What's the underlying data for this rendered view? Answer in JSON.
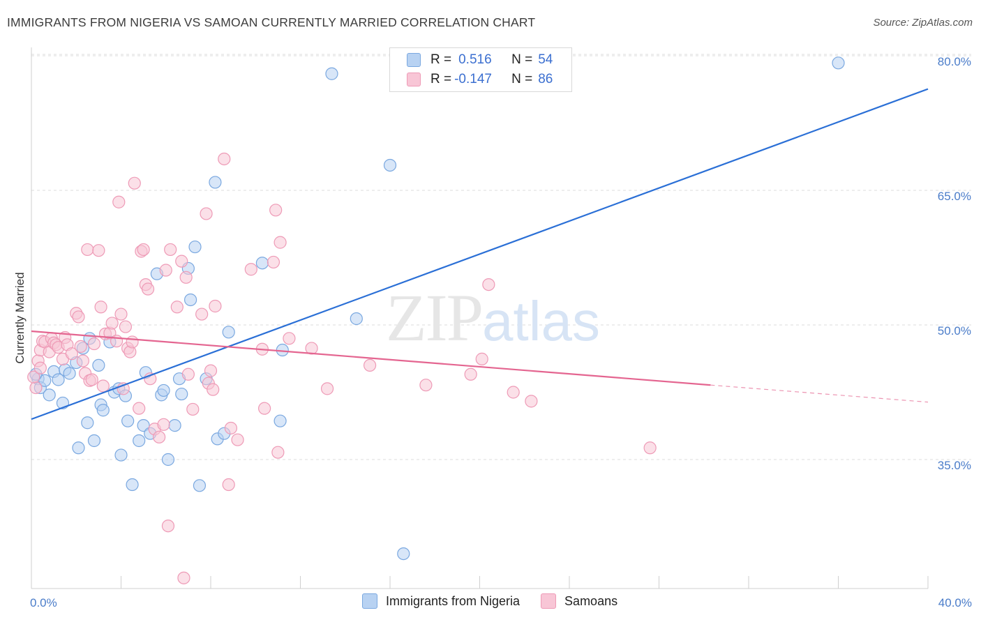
{
  "header": {
    "title": "IMMIGRANTS FROM NIGERIA VS SAMOAN CURRENTLY MARRIED CORRELATION CHART",
    "source": "Source: ZipAtlas.com"
  },
  "legend": {
    "rows": [
      {
        "r_label": "R =",
        "r_value": "0.516",
        "n_label": "N =",
        "n_value": "54"
      },
      {
        "r_label": "R =",
        "r_value": "-0.147",
        "n_label": "N =",
        "n_value": "86"
      }
    ],
    "bottom": [
      "Immigrants from Nigeria",
      "Samoans"
    ]
  },
  "watermark": {
    "zip": "ZIP",
    "atlas": "atlas"
  },
  "chart_data": {
    "type": "scatter",
    "title": "IMMIGRANTS FROM NIGERIA VS SAMOAN CURRENTLY MARRIED CORRELATION CHART",
    "xlabel": "",
    "ylabel": "Currently Married",
    "xlim": [
      0,
      40
    ],
    "ylim": [
      21,
      82
    ],
    "x_tick_labels": [
      "0.0%",
      "40.0%"
    ],
    "y_ticks": [
      35,
      50,
      65,
      80
    ],
    "y_tick_labels": [
      "35.0%",
      "50.0%",
      "65.0%",
      "80.0%"
    ],
    "grid": true,
    "legend_position": "top-center",
    "colors": {
      "nigeria_fill": "#b8d2f2",
      "nigeria_stroke": "#7aa8e0",
      "nigeria_line": "#2a6fd6",
      "samoan_fill": "#f8c6d6",
      "samoan_stroke": "#ee9ab6",
      "samoan_line": "#e46590"
    },
    "series": [
      {
        "name": "Immigrants from Nigeria",
        "trend": {
          "x": [
            0,
            40
          ],
          "y": [
            39.5,
            76.3
          ]
        },
        "points": [
          [
            0.3,
            44.0
          ],
          [
            0.4,
            43.0
          ],
          [
            0.6,
            43.8
          ],
          [
            0.8,
            42.2
          ],
          [
            1.0,
            44.8
          ],
          [
            1.2,
            43.9
          ],
          [
            1.4,
            41.3
          ],
          [
            1.5,
            45.0
          ],
          [
            1.7,
            44.6
          ],
          [
            2.0,
            45.8
          ],
          [
            2.3,
            47.4
          ],
          [
            2.5,
            39.1
          ],
          [
            2.6,
            48.5
          ],
          [
            2.1,
            36.3
          ],
          [
            2.8,
            37.1
          ],
          [
            3.0,
            45.5
          ],
          [
            3.1,
            41.1
          ],
          [
            3.2,
            40.5
          ],
          [
            3.5,
            48.1
          ],
          [
            3.7,
            42.5
          ],
          [
            3.9,
            42.9
          ],
          [
            4.0,
            35.5
          ],
          [
            4.2,
            42.1
          ],
          [
            4.3,
            39.3
          ],
          [
            4.5,
            32.2
          ],
          [
            4.8,
            37.1
          ],
          [
            5.0,
            38.8
          ],
          [
            5.1,
            44.7
          ],
          [
            5.3,
            37.9
          ],
          [
            5.6,
            55.7
          ],
          [
            5.8,
            42.2
          ],
          [
            5.9,
            42.7
          ],
          [
            6.1,
            35.0
          ],
          [
            6.4,
            38.8
          ],
          [
            6.6,
            44.0
          ],
          [
            6.7,
            42.3
          ],
          [
            7.0,
            56.3
          ],
          [
            7.1,
            52.8
          ],
          [
            7.3,
            58.7
          ],
          [
            7.5,
            32.1
          ],
          [
            7.8,
            44.0
          ],
          [
            8.2,
            65.9
          ],
          [
            8.3,
            37.3
          ],
          [
            8.6,
            37.9
          ],
          [
            8.8,
            49.2
          ],
          [
            10.3,
            56.9
          ],
          [
            11.1,
            39.3
          ],
          [
            11.2,
            47.2
          ],
          [
            13.4,
            78.0
          ],
          [
            14.5,
            50.7
          ],
          [
            16.0,
            67.8
          ],
          [
            16.6,
            24.5
          ],
          [
            36.0,
            79.2
          ],
          [
            0.2,
            44.5
          ]
        ]
      },
      {
        "name": "Samoans",
        "trend": {
          "x": [
            0,
            30.3
          ],
          "y": [
            49.3,
            43.3
          ]
        },
        "trend_dashed": {
          "x": [
            30.3,
            40
          ],
          "y": [
            43.3,
            41.4
          ]
        },
        "points": [
          [
            0.2,
            43.0
          ],
          [
            0.3,
            46.0
          ],
          [
            0.4,
            47.2
          ],
          [
            0.5,
            48.2
          ],
          [
            0.6,
            48.1
          ],
          [
            0.8,
            47.0
          ],
          [
            0.9,
            48.5
          ],
          [
            1.0,
            48.0
          ],
          [
            1.1,
            47.8
          ],
          [
            1.2,
            47.5
          ],
          [
            1.4,
            46.2
          ],
          [
            1.5,
            48.6
          ],
          [
            1.6,
            47.8
          ],
          [
            1.8,
            46.8
          ],
          [
            2.0,
            51.3
          ],
          [
            2.1,
            50.9
          ],
          [
            2.2,
            47.6
          ],
          [
            2.3,
            46.0
          ],
          [
            2.4,
            44.6
          ],
          [
            2.5,
            58.4
          ],
          [
            2.6,
            43.8
          ],
          [
            2.7,
            43.9
          ],
          [
            2.8,
            47.9
          ],
          [
            3.0,
            58.3
          ],
          [
            3.1,
            52.0
          ],
          [
            3.2,
            43.2
          ],
          [
            3.3,
            49.0
          ],
          [
            3.5,
            49.1
          ],
          [
            3.6,
            50.2
          ],
          [
            3.8,
            48.2
          ],
          [
            3.9,
            63.7
          ],
          [
            4.0,
            51.2
          ],
          [
            4.1,
            42.9
          ],
          [
            4.2,
            49.8
          ],
          [
            4.3,
            47.4
          ],
          [
            4.4,
            47.0
          ],
          [
            4.5,
            48.1
          ],
          [
            4.6,
            65.8
          ],
          [
            4.8,
            40.7
          ],
          [
            4.9,
            58.2
          ],
          [
            5.0,
            58.4
          ],
          [
            5.1,
            54.5
          ],
          [
            5.2,
            54.0
          ],
          [
            5.3,
            44.0
          ],
          [
            5.5,
            38.4
          ],
          [
            5.7,
            37.5
          ],
          [
            6.0,
            56.1
          ],
          [
            6.1,
            27.6
          ],
          [
            6.2,
            58.4
          ],
          [
            6.5,
            52.0
          ],
          [
            6.7,
            57.1
          ],
          [
            6.8,
            21.8
          ],
          [
            6.9,
            55.3
          ],
          [
            7.0,
            44.5
          ],
          [
            7.2,
            40.6
          ],
          [
            7.6,
            51.2
          ],
          [
            7.8,
            62.4
          ],
          [
            7.9,
            43.5
          ],
          [
            8.0,
            44.9
          ],
          [
            8.1,
            42.8
          ],
          [
            8.2,
            52.1
          ],
          [
            8.6,
            68.5
          ],
          [
            8.8,
            32.2
          ],
          [
            8.9,
            38.5
          ],
          [
            9.2,
            37.2
          ],
          [
            9.8,
            56.2
          ],
          [
            10.3,
            47.3
          ],
          [
            10.4,
            40.7
          ],
          [
            10.8,
            57.0
          ],
          [
            10.9,
            62.8
          ],
          [
            11.0,
            35.8
          ],
          [
            11.1,
            59.2
          ],
          [
            11.5,
            48.5
          ],
          [
            12.5,
            47.4
          ],
          [
            13.2,
            42.9
          ],
          [
            15.1,
            45.5
          ],
          [
            17.6,
            43.3
          ],
          [
            19.6,
            44.5
          ],
          [
            20.1,
            46.2
          ],
          [
            20.4,
            54.5
          ],
          [
            21.5,
            42.5
          ],
          [
            22.3,
            41.5
          ],
          [
            27.6,
            36.3
          ],
          [
            0.1,
            44.2
          ],
          [
            0.4,
            45.2
          ],
          [
            5.9,
            38.9
          ]
        ]
      }
    ]
  }
}
